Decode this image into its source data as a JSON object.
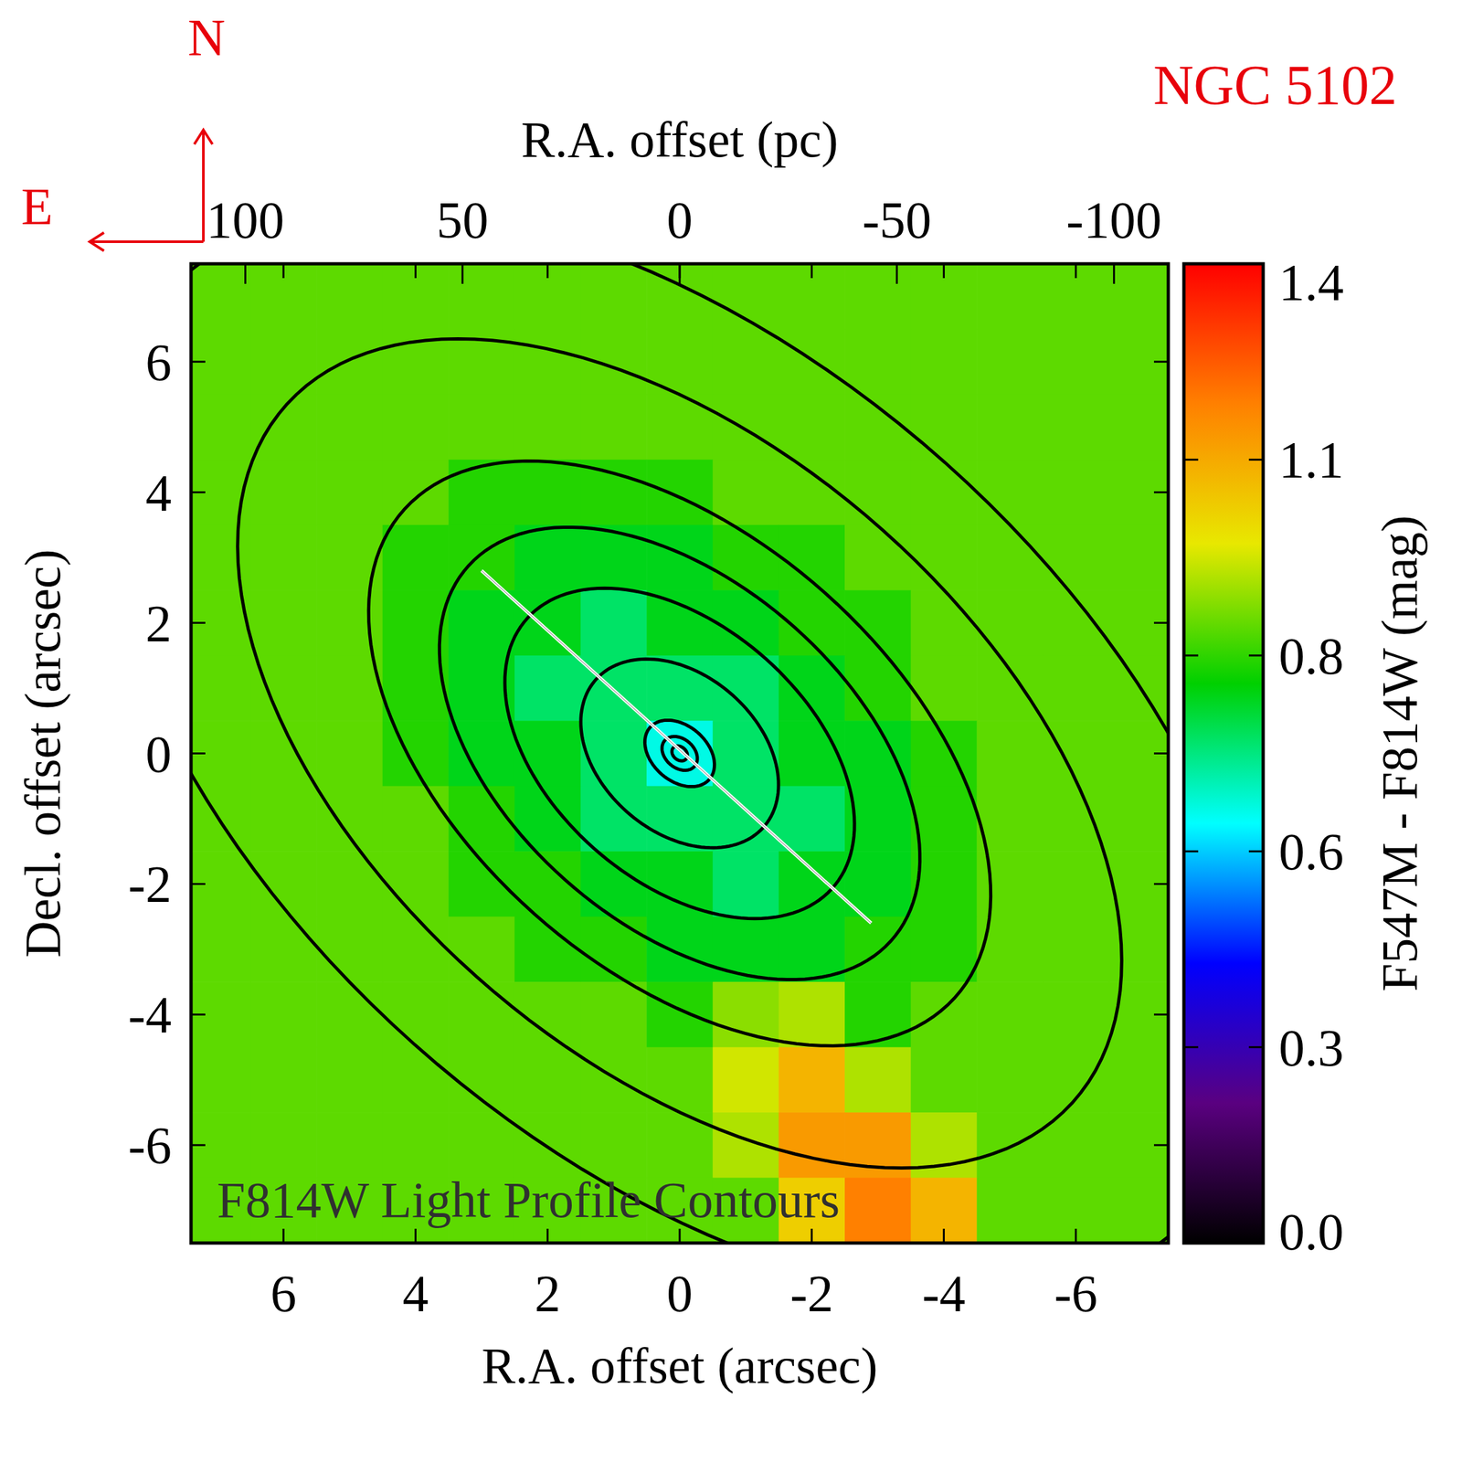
{
  "chart_data": {
    "type": "heatmap",
    "title": "NGC 5102",
    "xlabel": "R.A. offset (arcsec)",
    "ylabel": "Decl. offset (arcsec)",
    "x2label": "R.A. offset (pc)",
    "xlim": [
      7.4,
      -7.4
    ],
    "ylim": [
      -7.5,
      7.5
    ],
    "x2lim": [
      112.5,
      -112.5
    ],
    "xticks": [
      6,
      4,
      2,
      0,
      -2,
      -4,
      -6
    ],
    "yticks": [
      -6,
      -4,
      -2,
      0,
      2,
      4,
      6
    ],
    "x2ticks": [
      100,
      50,
      0,
      -50,
      -100
    ],
    "x": [
      7,
      6,
      5,
      4,
      3,
      2,
      1,
      0,
      -1,
      -2,
      -3,
      -4,
      -5,
      -6,
      -7
    ],
    "y": [
      7,
      6,
      5,
      4,
      3,
      2,
      1,
      0,
      -1,
      -2,
      -3,
      -4,
      -5,
      -6,
      -7
    ],
    "values": [
      [
        0.88,
        0.88,
        0.88,
        0.88,
        0.88,
        0.88,
        0.88,
        0.88,
        0.88,
        0.88,
        0.88,
        0.88,
        0.88,
        0.88,
        0.88
      ],
      [
        0.88,
        0.88,
        0.88,
        0.88,
        0.88,
        0.88,
        0.88,
        0.88,
        0.88,
        0.88,
        0.88,
        0.88,
        0.88,
        0.88,
        0.88
      ],
      [
        0.88,
        0.88,
        0.88,
        0.88,
        0.88,
        0.88,
        0.88,
        0.88,
        0.88,
        0.88,
        0.88,
        0.88,
        0.88,
        0.88,
        0.88
      ],
      [
        0.88,
        0.88,
        0.88,
        0.88,
        0.83,
        0.83,
        0.83,
        0.83,
        0.88,
        0.88,
        0.88,
        0.88,
        0.88,
        0.88,
        0.88
      ],
      [
        0.88,
        0.88,
        0.88,
        0.83,
        0.83,
        0.78,
        0.78,
        0.78,
        0.83,
        0.83,
        0.88,
        0.88,
        0.88,
        0.88,
        0.88
      ],
      [
        0.88,
        0.88,
        0.88,
        0.83,
        0.78,
        0.78,
        0.72,
        0.78,
        0.78,
        0.83,
        0.83,
        0.88,
        0.88,
        0.88,
        0.88
      ],
      [
        0.88,
        0.88,
        0.88,
        0.83,
        0.78,
        0.72,
        0.72,
        0.72,
        0.72,
        0.78,
        0.83,
        0.88,
        0.88,
        0.88,
        0.88
      ],
      [
        0.88,
        0.88,
        0.88,
        0.83,
        0.78,
        0.78,
        0.72,
        0.62,
        0.72,
        0.78,
        0.78,
        0.83,
        0.88,
        0.88,
        0.88
      ],
      [
        0.88,
        0.88,
        0.88,
        0.88,
        0.83,
        0.78,
        0.72,
        0.72,
        0.72,
        0.72,
        0.78,
        0.83,
        0.88,
        0.88,
        0.88
      ],
      [
        0.88,
        0.88,
        0.88,
        0.88,
        0.83,
        0.83,
        0.78,
        0.78,
        0.72,
        0.78,
        0.78,
        0.83,
        0.88,
        0.88,
        0.88
      ],
      [
        0.88,
        0.88,
        0.88,
        0.88,
        0.88,
        0.83,
        0.83,
        0.78,
        0.78,
        0.78,
        0.83,
        0.83,
        0.88,
        0.88,
        0.88
      ],
      [
        0.88,
        0.88,
        0.88,
        0.88,
        0.88,
        0.88,
        0.88,
        0.83,
        0.92,
        0.95,
        0.83,
        0.88,
        0.88,
        0.88,
        0.88
      ],
      [
        0.88,
        0.88,
        0.88,
        0.88,
        0.88,
        0.88,
        0.88,
        0.88,
        0.98,
        1.1,
        0.95,
        0.88,
        0.88,
        0.88,
        0.88
      ],
      [
        0.88,
        0.88,
        0.88,
        0.88,
        0.88,
        0.88,
        0.88,
        0.88,
        0.95,
        1.15,
        1.15,
        0.95,
        0.88,
        0.88,
        0.88
      ],
      [
        0.88,
        0.88,
        0.88,
        0.88,
        0.88,
        0.88,
        0.88,
        0.88,
        0.88,
        1.05,
        1.2,
        1.1,
        0.88,
        0.88,
        0.88
      ]
    ],
    "colors": [
      "#000000",
      "#5a0080",
      "#0000ff",
      "#00ffff",
      "#00d000",
      "#e8e800",
      "#ff8000",
      "#ff0000"
    ],
    "colorbar_label": "F547M - F814W (mag)",
    "colorbar_lim": [
      0,
      1.4
    ],
    "colorbar_ticks": [
      {
        "value": 0,
        "label": "0.0"
      },
      {
        "value": 0.28,
        "label": "0.3"
      },
      {
        "value": 0.56,
        "label": "0.6"
      },
      {
        "value": 0.84,
        "label": "0.8"
      },
      {
        "value": 1.12,
        "label": "1.1"
      },
      {
        "value": 1.4,
        "label": "1.4"
      }
    ],
    "contour_pa": 48,
    "contours": [
      {
        "a": 0.13,
        "b": 0.1
      },
      {
        "a": 0.3,
        "b": 0.22
      },
      {
        "a": 0.6,
        "b": 0.42
      },
      {
        "a": 1.7,
        "b": 1.2
      },
      {
        "a": 3.1,
        "b": 1.95
      },
      {
        "a": 4.3,
        "b": 2.6
      },
      {
        "a": 5.6,
        "b": 3.3
      },
      {
        "a": 8,
        "b": 4.6
      },
      {
        "a": 10.5,
        "b": 6
      }
    ],
    "line": {
      "x": [
        3.0,
        -2.9
      ],
      "y": [
        2.8,
        -2.6
      ]
    },
    "annotation": "F814W Light Profile Contours",
    "compass": {
      "north": "N",
      "east": "E"
    }
  }
}
